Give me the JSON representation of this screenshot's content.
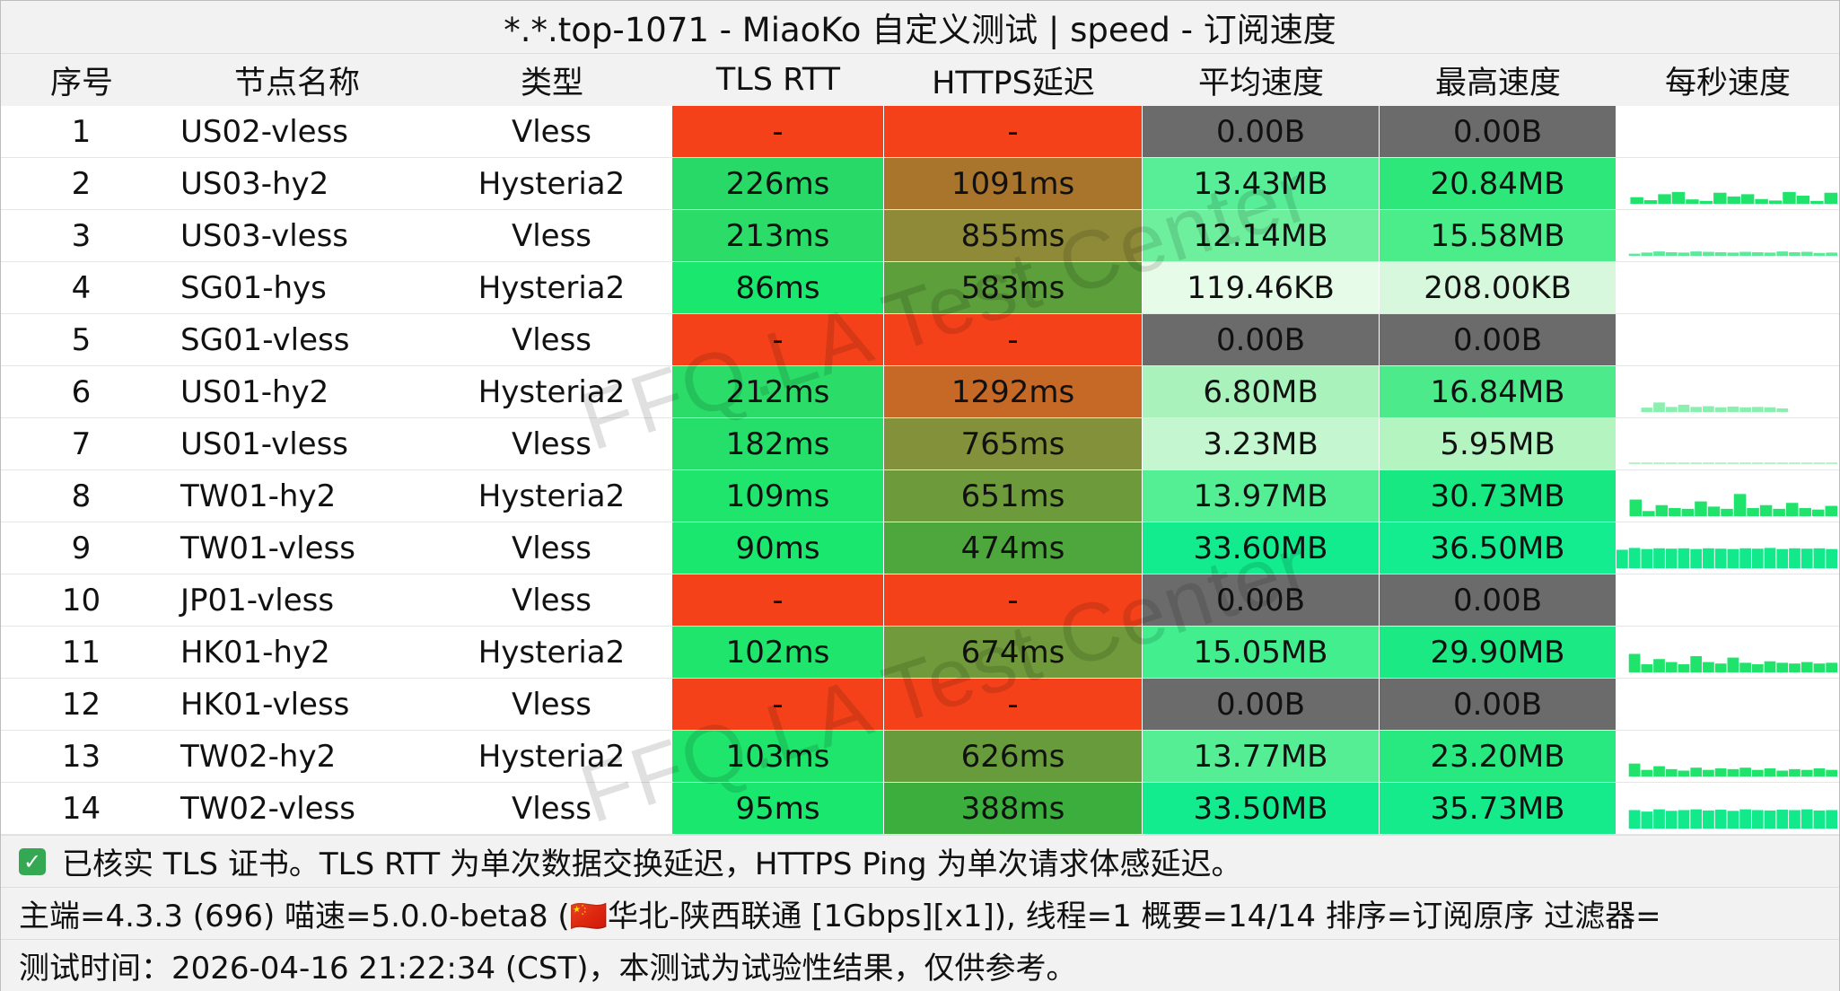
{
  "title": "*.*.top-1071 - MiaoKo 自定义测试 | speed - 订阅速度",
  "watermark": "FFQ.LA Test Center",
  "headers": [
    "序号",
    "节点名称",
    "类型",
    "TLS RTT",
    "HTTPS延迟",
    "平均速度",
    "最高速度",
    "每秒速度"
  ],
  "rows": [
    {
      "index": "1",
      "name": "US02-vless",
      "type": "Vless",
      "tls_rtt": "-",
      "https": "-",
      "avg": "0.00B",
      "max": "0.00B",
      "tls_color": "#f4411a",
      "https_color": "#f4411a",
      "avg_color": "#6b6b6b",
      "max_color": "#6b6b6b",
      "spark_color": "#ffffff",
      "spark": []
    },
    {
      "index": "2",
      "name": "US03-hy2",
      "type": "Hysteria2",
      "tls_rtt": "226ms",
      "https": "1091ms",
      "avg": "13.43MB",
      "max": "20.84MB",
      "tls_color": "#29d968",
      "https_color": "#a9752d",
      "avg_color": "#58ee97",
      "max_color": "#2ee77b",
      "spark_color": "#20e36b",
      "spark": [
        0.0,
        0.18,
        0.1,
        0.26,
        0.32,
        0.12,
        0.08,
        0.3,
        0.2,
        0.26,
        0.13,
        0.09,
        0.32,
        0.22,
        0.08,
        0.3
      ]
    },
    {
      "index": "3",
      "name": "US03-vless",
      "type": "Vless",
      "tls_rtt": "213ms",
      "https": "855ms",
      "avg": "12.14MB",
      "max": "15.58MB",
      "tls_color": "#2bdc68",
      "https_color": "#8f8a37",
      "avg_color": "#6eef9d",
      "max_color": "#4bed8a",
      "spark_color": "#5be99a",
      "spark": [
        0.0,
        0.06,
        0.09,
        0.12,
        0.1,
        0.09,
        0.12,
        0.11,
        0.1,
        0.09,
        0.11,
        0.1,
        0.09,
        0.12,
        0.1,
        0.11,
        0.08,
        0.09
      ]
    },
    {
      "index": "4",
      "name": "SG01-hys",
      "type": "Hysteria2",
      "tls_rtt": "86ms",
      "https": "583ms",
      "avg": "119.46KB",
      "max": "208.00KB",
      "tls_color": "#1ae86e",
      "https_color": "#5c9f3b",
      "avg_color": "#e7fbe9",
      "max_color": "#d8f8dd",
      "spark_color": "#ffffff",
      "spark": []
    },
    {
      "index": "5",
      "name": "SG01-vless",
      "type": "Vless",
      "tls_rtt": "-",
      "https": "-",
      "avg": "0.00B",
      "max": "0.00B",
      "tls_color": "#f4411a",
      "https_color": "#f4411a",
      "avg_color": "#6b6b6b",
      "max_color": "#6b6b6b",
      "spark_color": "#ffffff",
      "spark": []
    },
    {
      "index": "6",
      "name": "US01-hy2",
      "type": "Hysteria2",
      "tls_rtt": "212ms",
      "https": "1292ms",
      "avg": "6.80MB",
      "max": "16.84MB",
      "tls_color": "#2bdc68",
      "https_color": "#c66927",
      "avg_color": "#a9f2bc",
      "max_color": "#4cea8b",
      "spark_color": "#8af0b0",
      "spark": [
        0.0,
        0.0,
        0.12,
        0.26,
        0.14,
        0.2,
        0.14,
        0.16,
        0.13,
        0.15,
        0.13,
        0.14,
        0.13,
        0.1,
        0.0,
        0.0,
        0.0,
        0.0
      ]
    },
    {
      "index": "7",
      "name": "US01-vless",
      "type": "Vless",
      "tls_rtt": "182ms",
      "https": "765ms",
      "avg": "3.23MB",
      "max": "5.95MB",
      "tls_color": "#26df6a",
      "https_color": "#83913a",
      "avg_color": "#c4f6cf",
      "max_color": "#b3f4c1",
      "spark_color": "#b6f1c5",
      "spark": [
        0.0,
        0.02,
        0.03,
        0.02,
        0.03,
        0.04,
        0.03,
        0.02,
        0.03,
        0.03,
        0.02,
        0.03,
        0.02,
        0.03,
        0.03,
        0.02,
        0.03,
        0.02
      ]
    },
    {
      "index": "8",
      "name": "TW01-hy2",
      "type": "Hysteria2",
      "tls_rtt": "109ms",
      "https": "651ms",
      "avg": "13.97MB",
      "max": "30.73MB",
      "tls_color": "#1fe56c",
      "https_color": "#6d9a3b",
      "avg_color": "#54ee95",
      "max_color": "#18e882",
      "spark_color": "#20e36b",
      "spark": [
        0.0,
        0.45,
        0.14,
        0.3,
        0.22,
        0.2,
        0.4,
        0.26,
        0.2,
        0.6,
        0.22,
        0.3,
        0.2,
        0.36,
        0.22,
        0.18,
        0.28
      ]
    },
    {
      "index": "9",
      "name": "TW01-vless",
      "type": "Vless",
      "tls_rtt": "90ms",
      "https": "474ms",
      "avg": "33.60MB",
      "max": "36.50MB",
      "tls_color": "#1ae86e",
      "https_color": "#4ea73c",
      "avg_color": "#12eb8e",
      "max_color": "#14ec90",
      "spark_color": "#12e98a",
      "spark": [
        0.5,
        0.55,
        0.52,
        0.54,
        0.53,
        0.54,
        0.52,
        0.54,
        0.53,
        0.52,
        0.54,
        0.53,
        0.55,
        0.52,
        0.54,
        0.53,
        0.54,
        0.52
      ]
    },
    {
      "index": "10",
      "name": "JP01-vless",
      "type": "Vless",
      "tls_rtt": "-",
      "https": "-",
      "avg": "0.00B",
      "max": "0.00B",
      "tls_color": "#f4411a",
      "https_color": "#f4411a",
      "avg_color": "#6b6b6b",
      "max_color": "#6b6b6b",
      "spark_color": "#ffffff",
      "spark": []
    },
    {
      "index": "11",
      "name": "HK01-hy2",
      "type": "Hysteria2",
      "tls_rtt": "102ms",
      "https": "674ms",
      "avg": "15.05MB",
      "max": "29.90MB",
      "tls_color": "#1fe56c",
      "https_color": "#709a3b",
      "avg_color": "#43ee8e",
      "max_color": "#1ae984",
      "spark_color": "#20e36b",
      "spark": [
        0.0,
        0.5,
        0.22,
        0.36,
        0.28,
        0.22,
        0.44,
        0.28,
        0.24,
        0.4,
        0.26,
        0.22,
        0.3,
        0.26,
        0.24,
        0.28,
        0.24,
        0.26
      ]
    },
    {
      "index": "12",
      "name": "HK01-vless",
      "type": "Vless",
      "tls_rtt": "-",
      "https": "-",
      "avg": "0.00B",
      "max": "0.00B",
      "tls_color": "#f4411a",
      "https_color": "#f4411a",
      "avg_color": "#6b6b6b",
      "max_color": "#6b6b6b",
      "spark_color": "#ffffff",
      "spark": []
    },
    {
      "index": "13",
      "name": "TW02-hy2",
      "type": "Hysteria2",
      "tls_rtt": "103ms",
      "https": "626ms",
      "avg": "13.77MB",
      "max": "23.20MB",
      "tls_color": "#1fe56c",
      "https_color": "#679b3c",
      "avg_color": "#55ee95",
      "max_color": "#28e97f",
      "spark_color": "#20e36b",
      "spark": [
        0.0,
        0.35,
        0.18,
        0.28,
        0.2,
        0.16,
        0.24,
        0.18,
        0.22,
        0.2,
        0.24,
        0.18,
        0.22,
        0.16,
        0.2,
        0.18,
        0.22,
        0.18
      ]
    },
    {
      "index": "14",
      "name": "TW02-vless",
      "type": "Vless",
      "tls_rtt": "95ms",
      "https": "388ms",
      "avg": "33.50MB",
      "max": "35.73MB",
      "tls_color": "#1ae86e",
      "https_color": "#3cae3e",
      "avg_color": "#12eb8e",
      "max_color": "#16eb8c",
      "spark_color": "#12e98a",
      "spark": [
        0.0,
        0.5,
        0.46,
        0.52,
        0.48,
        0.5,
        0.52,
        0.49,
        0.51,
        0.48,
        0.52,
        0.5,
        0.49,
        0.51,
        0.5,
        0.52,
        0.49,
        0.5
      ]
    }
  ],
  "footer": {
    "line1": "已核实 TLS 证书。TLS RTT 为单次数据交换延迟，HTTPS Ping 为单次请求体感延迟。",
    "line2": "主端=4.3.3 (696) 喵速=5.0.0-beta8 (🇨🇳华北-陕西联通 [1Gbps][x1]), 线程=1 概要=14/14 排序=订阅原序 过滤器=",
    "line3": "测试时间：2026-04-16 21:22:34 (CST)，本测试为试验性结果，仅供参考。"
  }
}
